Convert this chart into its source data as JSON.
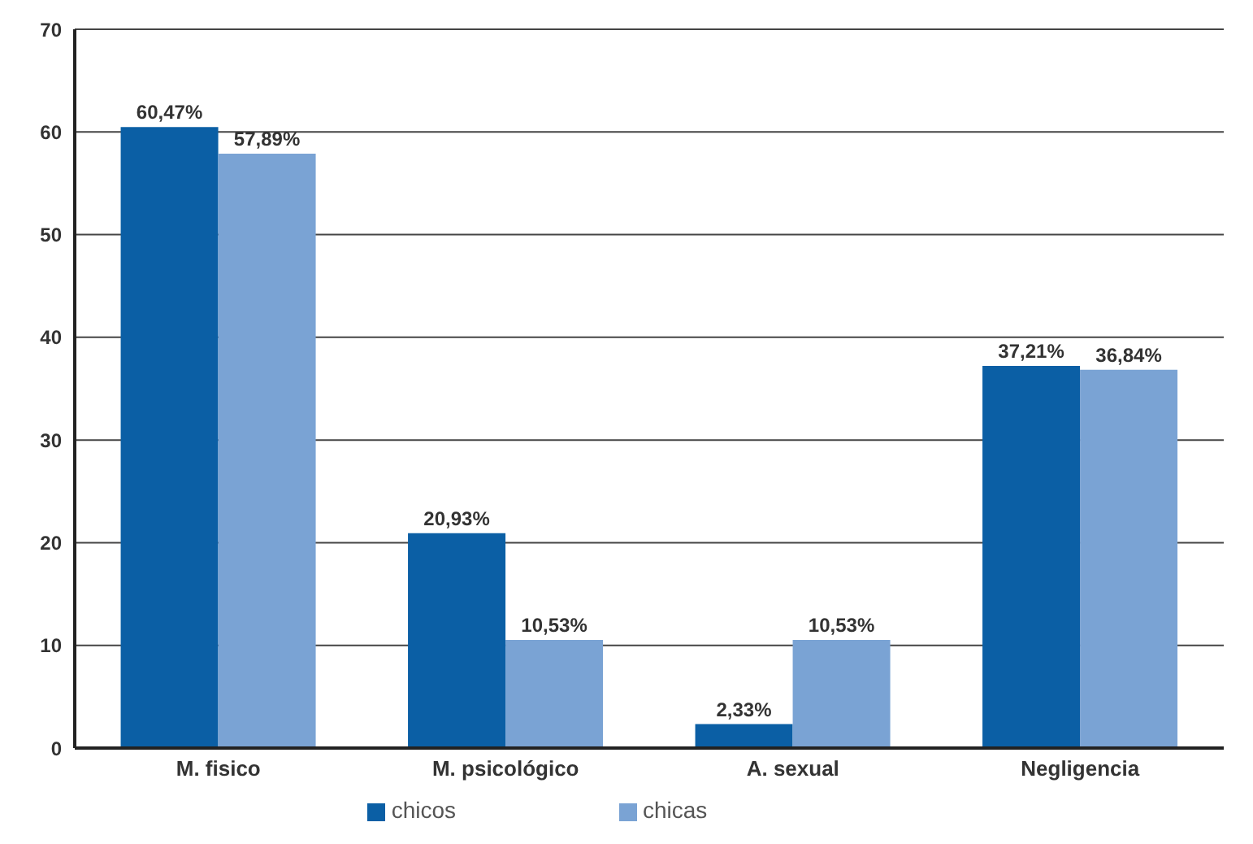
{
  "chart_data": {
    "type": "bar",
    "categories": [
      "M. fisico",
      "M. psicológico",
      "A. sexual",
      "Negligencia"
    ],
    "series": [
      {
        "name": "chicos",
        "color": "#0b5fa5",
        "values": [
          60.47,
          20.93,
          2.33,
          37.21
        ],
        "value_labels": [
          "60,47%",
          "20,93%",
          "2,33%",
          "37,21%"
        ]
      },
      {
        "name": "chicas",
        "color": "#7aa3d4",
        "values": [
          57.89,
          10.53,
          10.53,
          36.84
        ],
        "value_labels": [
          "57,89%",
          "10,53%",
          "10,53%",
          "36,84%"
        ]
      }
    ],
    "ylim": [
      0,
      70
    ],
    "yticks": [
      0,
      10,
      20,
      30,
      40,
      50,
      60,
      70
    ],
    "grid": "y",
    "legend": "bottom"
  }
}
